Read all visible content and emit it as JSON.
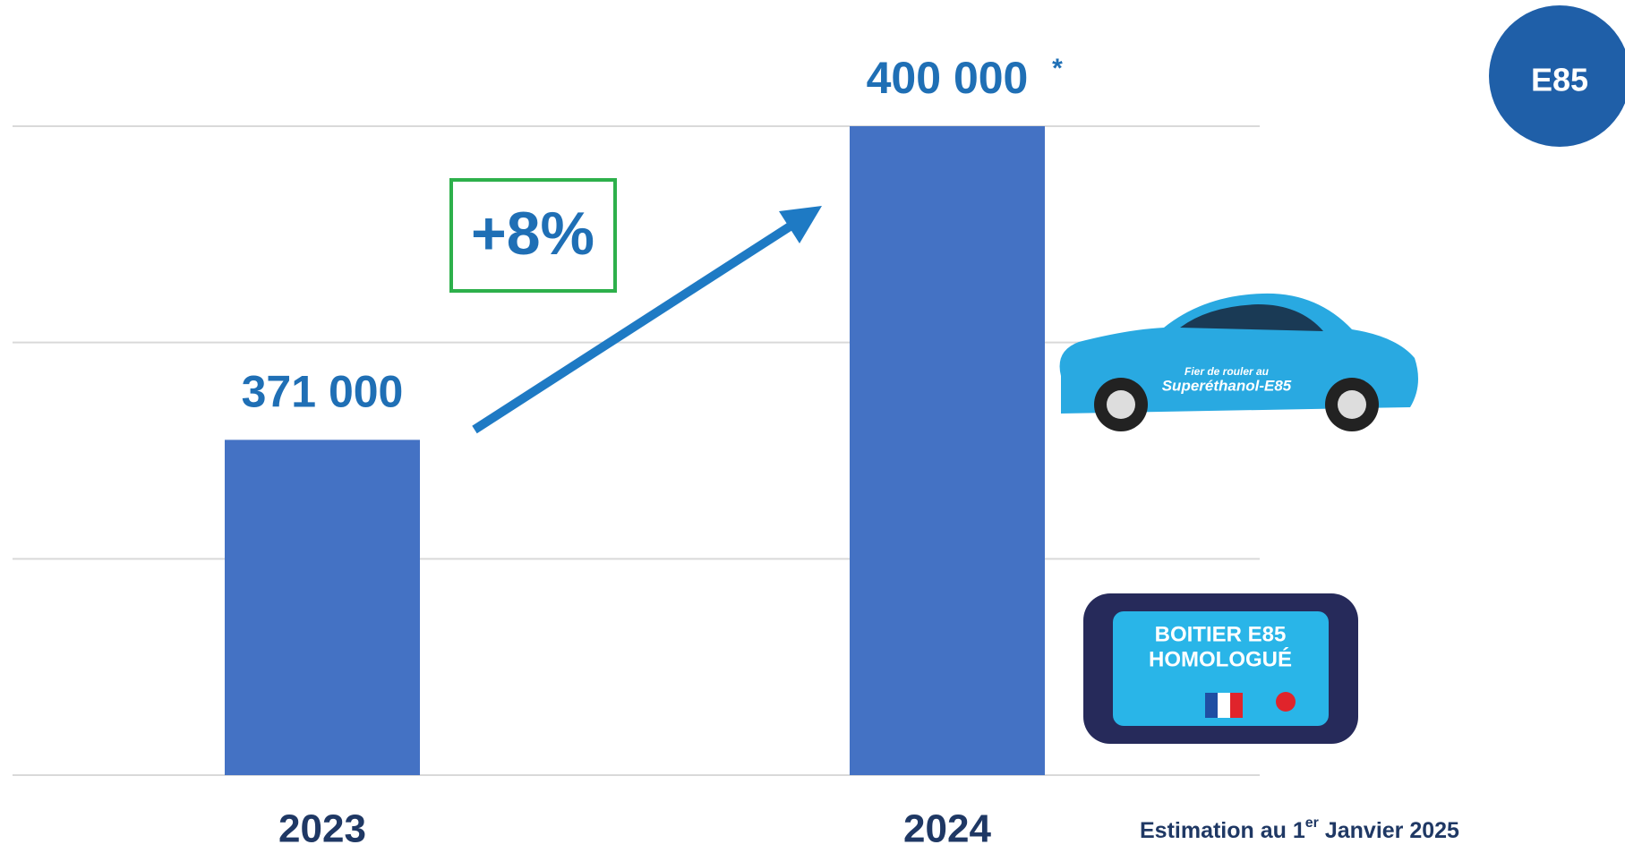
{
  "chart_data": {
    "type": "bar",
    "categories": [
      "2023",
      "2024"
    ],
    "values": [
      371000,
      400000
    ],
    "value_labels": [
      "371 000",
      "400 000"
    ],
    "color": "#4472c4",
    "ylim": [
      340000,
      400000
    ],
    "yticks": [
      340000,
      360000,
      380000,
      400000
    ],
    "grid": true,
    "annotations": {
      "asterisk": "*",
      "growth": "+8%"
    },
    "footnote": [
      "Estimation au 1",
      "er",
      " Janvier 2025"
    ]
  },
  "badge": "E85",
  "car": {
    "line1": "Fier de rouler au",
    "line2": "Superéthanol-E85"
  },
  "box": {
    "line1": "BOITIER E85",
    "line2": "HOMOLOGUÉ"
  }
}
